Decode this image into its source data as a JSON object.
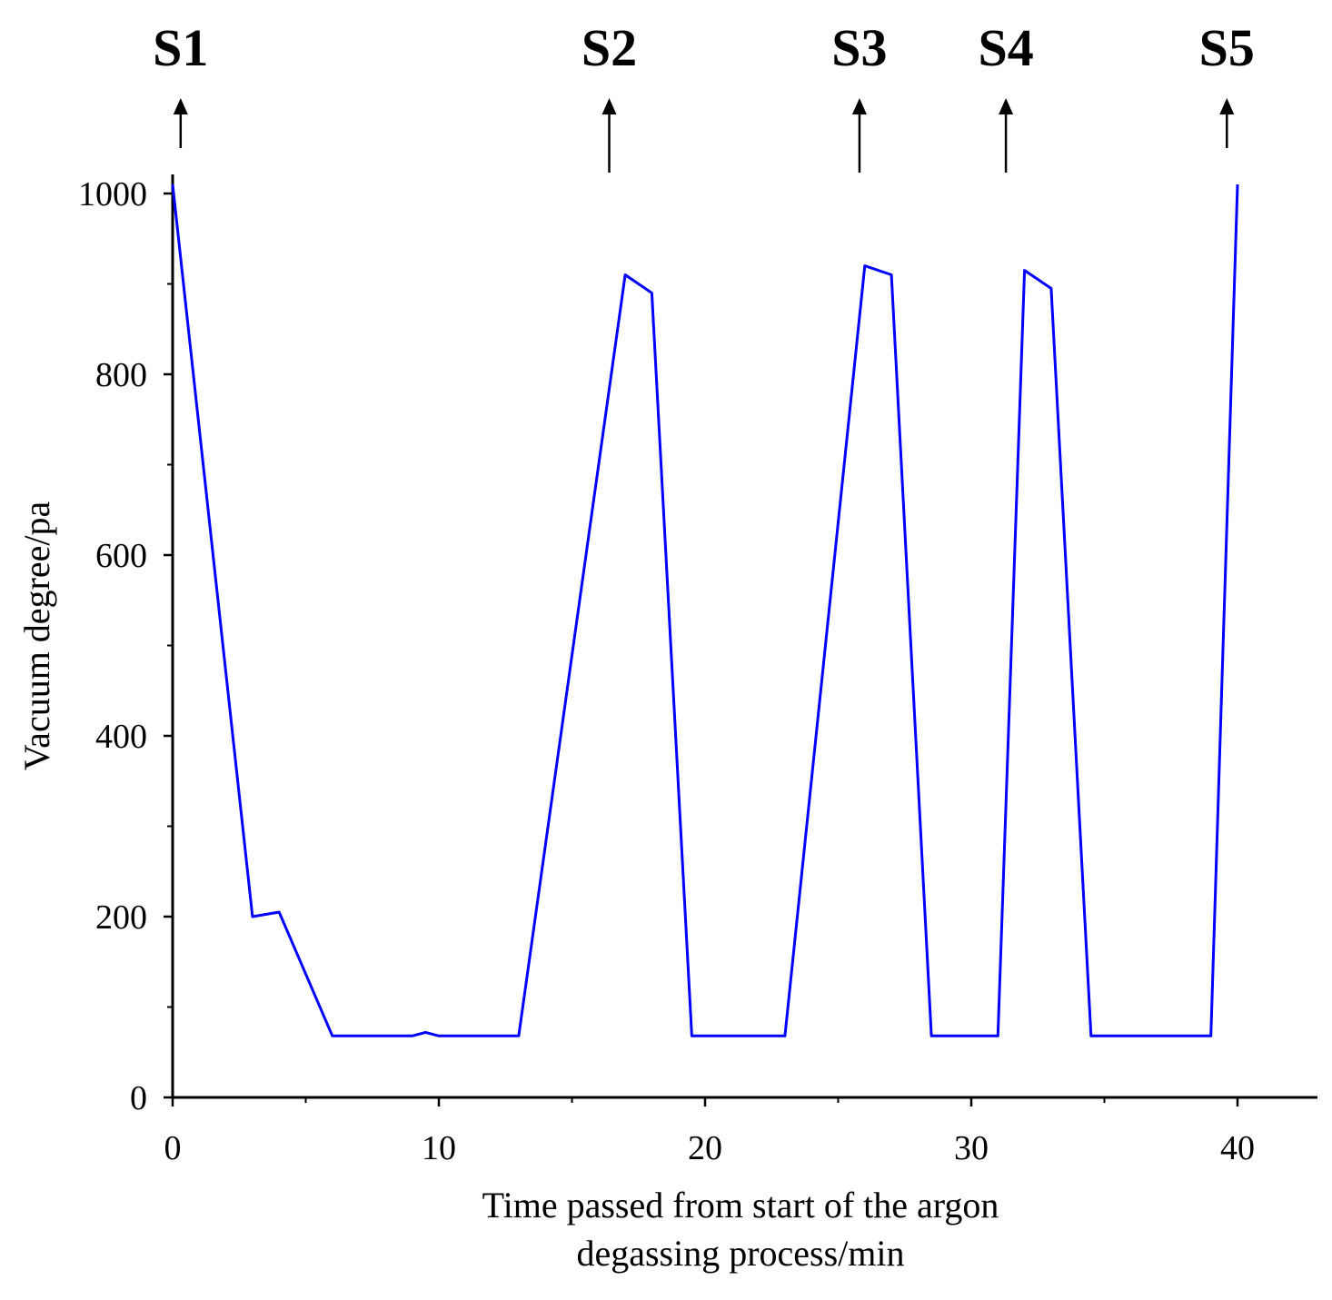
{
  "chart_data": {
    "type": "line",
    "title": "",
    "xlabel_lines": [
      "Time passed from start of the argon",
      "degassing process/min"
    ],
    "ylabel": "Vacuum degree/pa",
    "xlim": [
      0,
      43
    ],
    "ylim": [
      0,
      1000
    ],
    "x_ticks": [
      0,
      10,
      20,
      30,
      40
    ],
    "x_tick_labels": [
      "0",
      "10",
      "20",
      "30",
      "40"
    ],
    "x_minor_ticks": [
      5,
      15,
      25,
      35
    ],
    "y_ticks": [
      0,
      200,
      400,
      600,
      800,
      1000
    ],
    "y_tick_labels": [
      "0",
      "200",
      "400",
      "600",
      "800",
      "1000"
    ],
    "y_minor_ticks": [
      100,
      300,
      500,
      700,
      900
    ],
    "grid": false,
    "legend": "none",
    "colors": {
      "line": "#0000ff",
      "axis": "#000000",
      "arrow": "#000000"
    },
    "series": [
      {
        "x": [
          0,
          3,
          4,
          6,
          9,
          9.5,
          10,
          13,
          17,
          18,
          19.5,
          23,
          26,
          27,
          28.5,
          31,
          32,
          33,
          34.5,
          39,
          40
        ],
        "y": [
          1010,
          200,
          205,
          68,
          68,
          72,
          68,
          68,
          910,
          890,
          68,
          68,
          920,
          910,
          68,
          68,
          915,
          895,
          68,
          68,
          1010
        ]
      }
    ],
    "annotations": [
      {
        "label": "S1",
        "x": 0.3
      },
      {
        "label": "S2",
        "x": 16.4
      },
      {
        "label": "S3",
        "x": 25.8
      },
      {
        "label": "S4",
        "x": 31.3
      },
      {
        "label": "S5",
        "x": 39.6
      }
    ]
  }
}
